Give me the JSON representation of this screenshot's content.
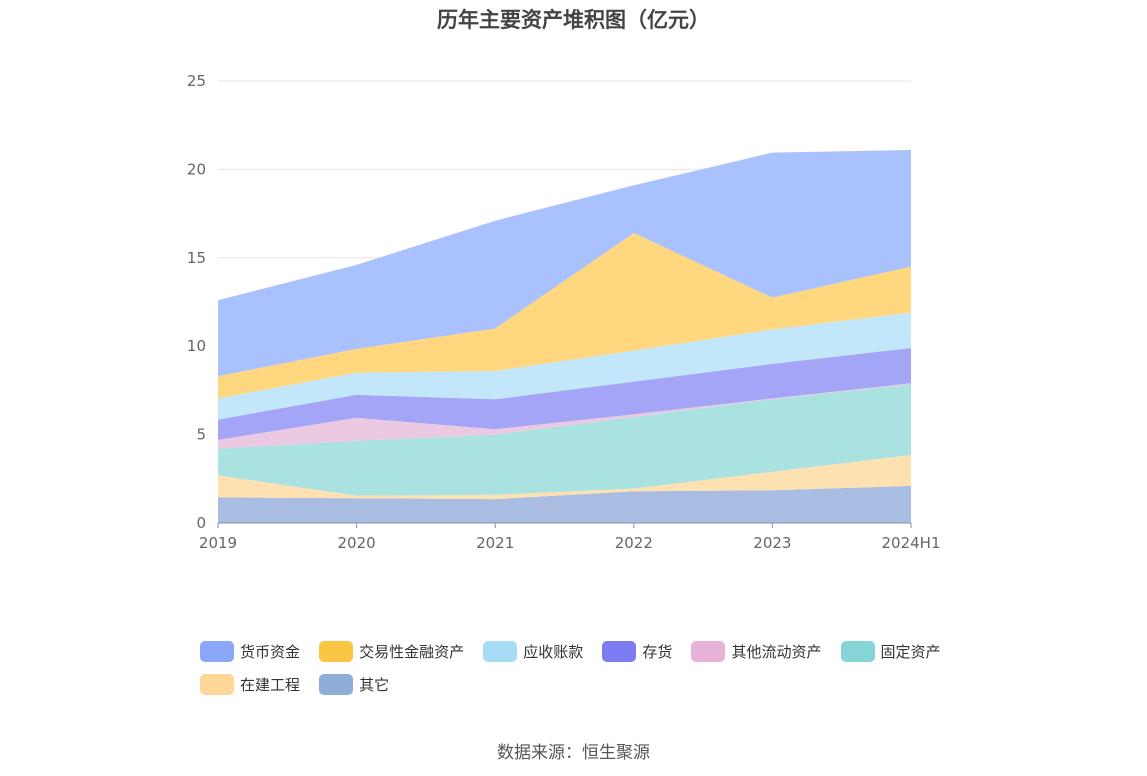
{
  "title": "历年主要资产堆积图（亿元）",
  "source": "数据来源：恒生聚源",
  "chart_data": {
    "type": "area",
    "stacked": true,
    "title": "历年主要资产堆积图（亿元）",
    "xlabel": "",
    "ylabel": "",
    "categories": [
      "2019",
      "2020",
      "2021",
      "2022",
      "2023",
      "2024H1"
    ],
    "ylim": [
      0,
      25
    ],
    "yticks": [
      0,
      5,
      10,
      15,
      20,
      25
    ],
    "grid": true,
    "legend_position": "bottom",
    "series": [
      {
        "name": "其它",
        "color": "#a9bde3",
        "values": [
          1.45,
          1.4,
          1.35,
          1.8,
          1.85,
          2.1
        ]
      },
      {
        "name": "在建工程",
        "color": "#fde1b0",
        "values": [
          1.25,
          0.15,
          0.25,
          0.15,
          1.05,
          1.75
        ]
      },
      {
        "name": "固定资产",
        "color": "#a9e2e1",
        "values": [
          1.5,
          3.1,
          3.4,
          4.05,
          4.1,
          4.0
        ]
      },
      {
        "name": "其他流动资产",
        "color": "#ecc9e2",
        "values": [
          0.5,
          1.3,
          0.3,
          0.15,
          0.05,
          0.05
        ]
      },
      {
        "name": "存货",
        "color": "#a4a5f6",
        "values": [
          1.15,
          1.3,
          1.7,
          1.85,
          1.95,
          2.0
        ]
      },
      {
        "name": "应收账款",
        "color": "#c2e6fa",
        "values": [
          1.2,
          1.25,
          1.6,
          1.75,
          1.95,
          2.0
        ]
      },
      {
        "name": "交易性金融资产",
        "color": "#fed77f",
        "values": [
          1.25,
          1.35,
          2.4,
          6.65,
          1.8,
          2.6
        ]
      },
      {
        "name": "货币资金",
        "color": "#a9c1fc",
        "values": [
          4.3,
          4.75,
          6.1,
          2.7,
          8.2,
          6.6
        ]
      }
    ]
  },
  "legend": [
    {
      "label": "货币资金",
      "color": "#8aa7f8"
    },
    {
      "label": "交易性金融资产",
      "color": "#fdc642"
    },
    {
      "label": "应收账款",
      "color": "#a6dcf6"
    },
    {
      "label": "存货",
      "color": "#7b7cf2"
    },
    {
      "label": "其他流动资产",
      "color": "#e7b3d8"
    },
    {
      "label": "固定资产",
      "color": "#85d5d7"
    },
    {
      "label": "在建工程",
      "color": "#fdd698"
    },
    {
      "label": "其它",
      "color": "#8eadd9"
    }
  ]
}
